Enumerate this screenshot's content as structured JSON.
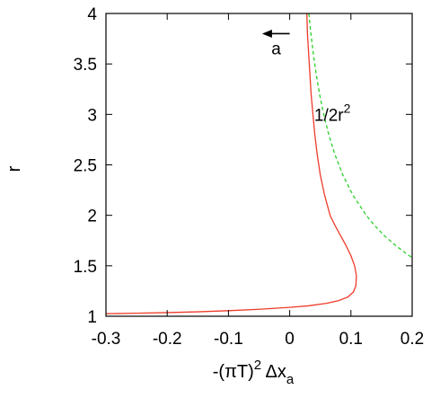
{
  "chart_data": {
    "type": "line",
    "title": "",
    "xlabel": {
      "main": "-(πT)",
      "power": "2",
      "delta": " Δx",
      "subscript": "a"
    },
    "ylabel": "r",
    "xlim": [
      -0.3,
      0.2
    ],
    "ylim": [
      1.0,
      4.0
    ],
    "xticks": [
      {
        "value": -0.3,
        "label": "-0.3"
      },
      {
        "value": -0.2,
        "label": "-0.2"
      },
      {
        "value": -0.1,
        "label": "-0.1"
      },
      {
        "value": 0.0,
        "label": "0"
      },
      {
        "value": 0.1,
        "label": "0.1"
      },
      {
        "value": 0.2,
        "label": "0.2"
      }
    ],
    "yticks": [
      {
        "value": 1.0,
        "label": "1"
      },
      {
        "value": 1.5,
        "label": "1.5"
      },
      {
        "value": 2.0,
        "label": "2"
      },
      {
        "value": 2.5,
        "label": "2.5"
      },
      {
        "value": 3.0,
        "label": "3"
      },
      {
        "value": 3.5,
        "label": "3.5"
      },
      {
        "value": 4.0,
        "label": "4"
      }
    ],
    "grid": false,
    "series": [
      {
        "color": "#ee3b2a",
        "dash": "solid",
        "points": [
          [
            -0.3,
            1.025
          ],
          [
            -0.25,
            1.03
          ],
          [
            -0.2,
            1.036
          ],
          [
            -0.15,
            1.044
          ],
          [
            -0.1,
            1.055
          ],
          [
            -0.05,
            1.069
          ],
          [
            0.0,
            1.088
          ],
          [
            0.03,
            1.103
          ],
          [
            0.06,
            1.128
          ],
          [
            0.08,
            1.155
          ],
          [
            0.095,
            1.19
          ],
          [
            0.104,
            1.24
          ],
          [
            0.108,
            1.3
          ],
          [
            0.109,
            1.4
          ],
          [
            0.106,
            1.5
          ],
          [
            0.1,
            1.6
          ],
          [
            0.092,
            1.7
          ],
          [
            0.083,
            1.8
          ],
          [
            0.074,
            1.9
          ],
          [
            0.066,
            2.0
          ],
          [
            0.057,
            2.2
          ],
          [
            0.05,
            2.4
          ],
          [
            0.045,
            2.6
          ],
          [
            0.041,
            2.8
          ],
          [
            0.038,
            3.0
          ],
          [
            0.035,
            3.2
          ],
          [
            0.033,
            3.4
          ],
          [
            0.031,
            3.6
          ],
          [
            0.029,
            3.8
          ],
          [
            0.028,
            4.0
          ]
        ]
      },
      {
        "color": "#2bcf2b",
        "dash": "dashed",
        "label": {
          "base": "1/2r",
          "power": "2",
          "x": 0.04,
          "y": 3.0
        },
        "points": [
          [
            0.03125,
            4.0
          ],
          [
            0.0347,
            3.8
          ],
          [
            0.0386,
            3.6
          ],
          [
            0.0433,
            3.4
          ],
          [
            0.0488,
            3.2
          ],
          [
            0.0556,
            3.0
          ],
          [
            0.0638,
            2.8
          ],
          [
            0.074,
            2.6
          ],
          [
            0.0868,
            2.4
          ],
          [
            0.1033,
            2.2
          ],
          [
            0.125,
            2.0
          ],
          [
            0.1385,
            1.9
          ],
          [
            0.1543,
            1.8
          ],
          [
            0.173,
            1.7
          ],
          [
            0.1953,
            1.6
          ],
          [
            0.2,
            1.581
          ]
        ]
      }
    ],
    "annotation": {
      "text": "a",
      "arrow_from": [
        -0.0,
        3.8
      ],
      "arrow_to": [
        -0.045,
        3.8
      ],
      "text_at": [
        -0.022,
        3.65
      ]
    }
  }
}
